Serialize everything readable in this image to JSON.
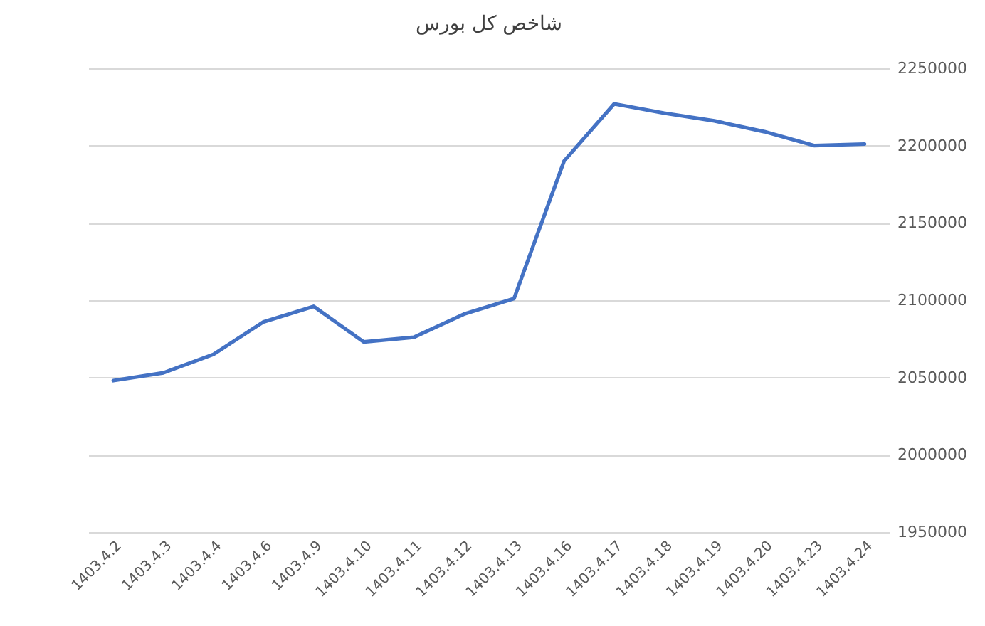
{
  "chart_data": {
    "type": "line",
    "title": "شاخص کل بورس",
    "categories": [
      "1403.4.2",
      "1403.4.3",
      "1403.4.4",
      "1403.4.6",
      "1403.4.9",
      "1403.4.10",
      "1403.4.11",
      "1403.4.12",
      "1403.4.13",
      "1403.4.16",
      "1403.4.17",
      "1403.4.18",
      "1403.4.19",
      "1403.4.20",
      "1403.4.23",
      "1403.4.24"
    ],
    "series": [
      {
        "color": "#4472c4",
        "values": [
          2048000,
          2053000,
          2065000,
          2086000,
          2096000,
          2073000,
          2076000,
          2091000,
          2101000,
          2190000,
          2227000,
          2221000,
          2216000,
          2209000,
          2200000,
          2201000
        ]
      }
    ],
    "ylim": [
      1950000,
      2250000
    ],
    "yticks": [
      1950000,
      2000000,
      2050000,
      2100000,
      2150000,
      2200000,
      2250000
    ],
    "grid": "y"
  }
}
